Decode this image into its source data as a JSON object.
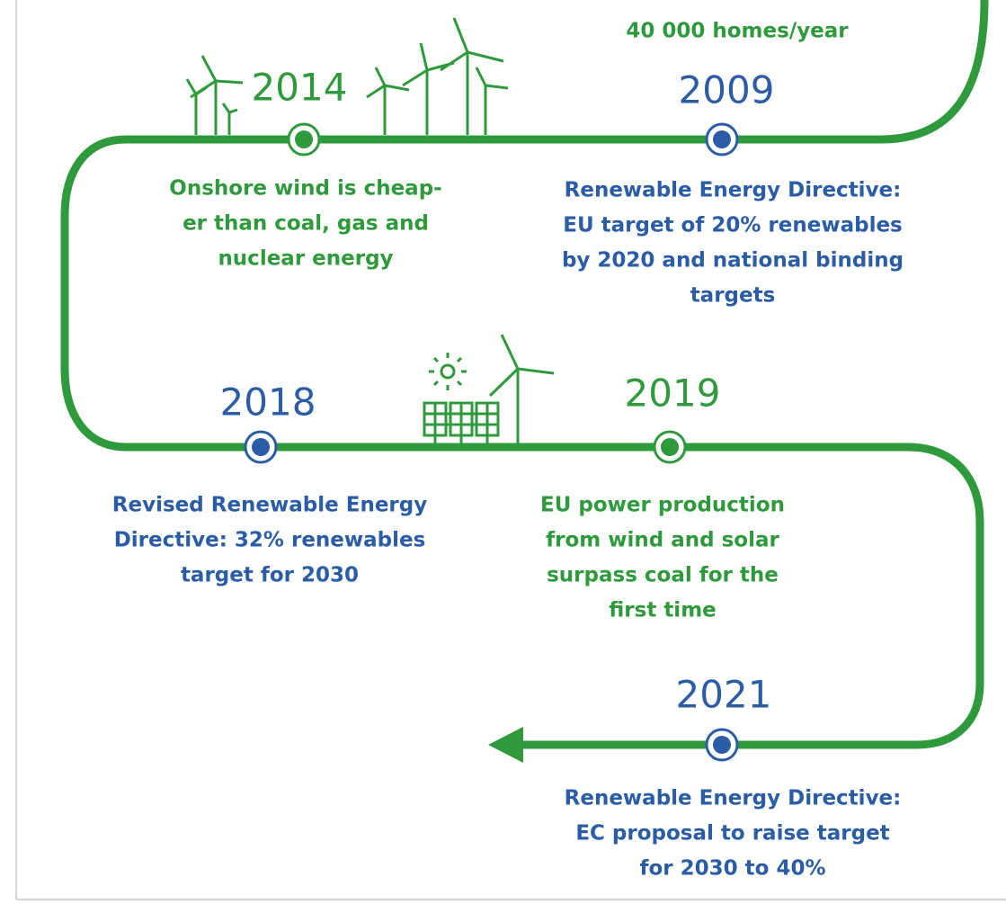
{
  "top_note": "40 000 homes/year",
  "events": [
    {
      "year": "2014",
      "color": "#2f9a3c",
      "lines": [
        "Onshore wind is cheap-",
        "er than coal, gas and",
        "nuclear energy"
      ]
    },
    {
      "year": "2009",
      "color": "#2b5ca6",
      "lines": [
        "Renewable Energy Directive:",
        "EU target of 20% renewables",
        "by 2020 and national binding",
        "targets"
      ]
    },
    {
      "year": "2018",
      "color": "#2b5ca6",
      "lines": [
        "Revised Renewable Energy",
        "Directive: 32% renewables",
        "target for 2030"
      ]
    },
    {
      "year": "2019",
      "color": "#2f9a3c",
      "lines": [
        "EU power production",
        "from wind and solar",
        "surpass coal for the",
        "first time"
      ]
    },
    {
      "year": "2021",
      "color": "#2b5ca6",
      "lines": [
        "Renewable Energy Directive:",
        "EC proposal to raise target",
        "for 2030 to 40%"
      ]
    }
  ]
}
